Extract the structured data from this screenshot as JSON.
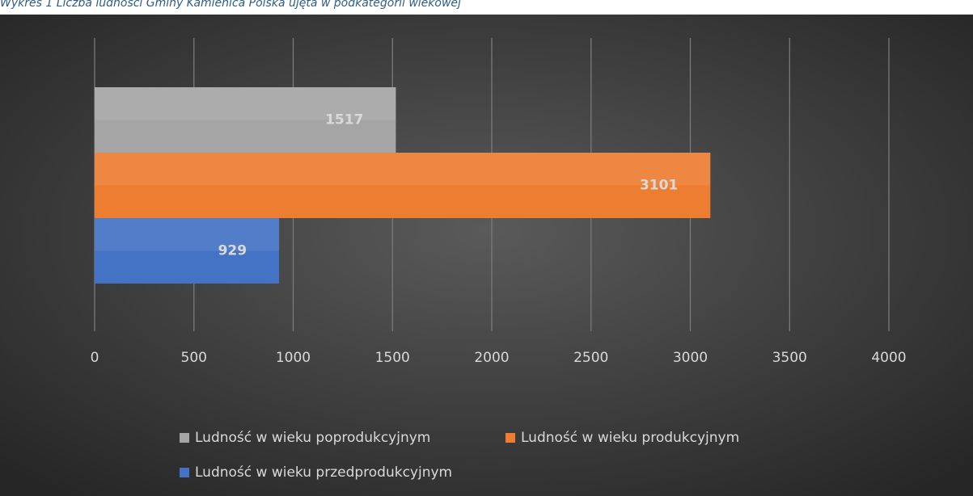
{
  "caption": "Wykres 1 Liczba ludności Gminy Kamienica Polska ujęta w podkategorii wiekowej",
  "chart_data": {
    "type": "bar",
    "orientation": "horizontal",
    "categories": [
      null
    ],
    "series": [
      {
        "name": "Ludność w wieku poprodukcyjnym",
        "color": "#a5a5a5",
        "values": [
          1517
        ]
      },
      {
        "name": "Ludność w wieku produkcyjnym",
        "color": "#ed7d31",
        "values": [
          3101
        ]
      },
      {
        "name": "Ludność w wieku przedprodukcyjnym",
        "color": "#4472c4",
        "values": [
          929
        ]
      }
    ],
    "xlim": [
      0,
      4000
    ],
    "xticks": [
      0,
      500,
      1000,
      1500,
      2000,
      2500,
      3000,
      3500,
      4000
    ],
    "grid": true,
    "legend": "bottom"
  }
}
